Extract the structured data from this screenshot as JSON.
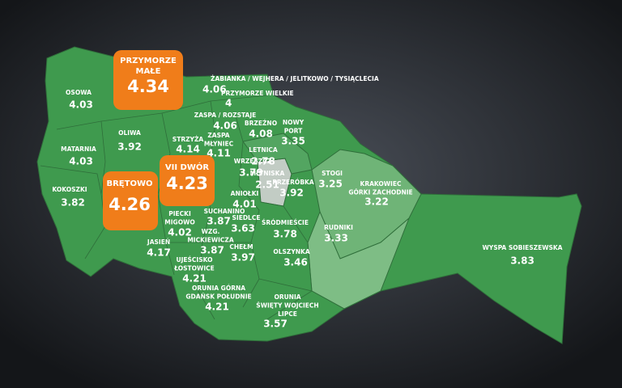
{
  "districts": [
    {
      "name": [
        "OSOWA"
      ],
      "value": 4.03
    },
    {
      "name": [
        "PRZYMORZE",
        "MAŁE"
      ],
      "value": 4.34,
      "highlight": true
    },
    {
      "name": [
        "ŻABIANKA / WEJHERA / JELITKOWO / TYSIĄCLECIA"
      ],
      "value": 4.06
    },
    {
      "name": [
        "PRZYMORZE WIELKIE"
      ],
      "value": 4
    },
    {
      "name": [
        "OLIWA"
      ],
      "value": 3.92
    },
    {
      "name": [
        "MATARNIA"
      ],
      "value": 4.03
    },
    {
      "name": [
        "ZASPA / ROZSTAJE"
      ],
      "value": 4.06
    },
    {
      "name": [
        "BRZEŹNO"
      ],
      "value": 4.08
    },
    {
      "name": [
        "NOWY",
        "PORT"
      ],
      "value": 3.35
    },
    {
      "name": [
        "STRZYŻA"
      ],
      "value": 4.14
    },
    {
      "name": [
        "ZASPA",
        "MŁYNIEC"
      ],
      "value": 4.11
    },
    {
      "name": [
        "LETNICA"
      ],
      "value": 2.78
    },
    {
      "name": [
        "VII DWÓR"
      ],
      "value": 4.23,
      "highlight": true
    },
    {
      "name": [
        "WRZESZCZ"
      ],
      "value": 3.79
    },
    {
      "name": [
        "KOKOSZKI"
      ],
      "value": 3.82
    },
    {
      "name": [
        "BRĘTOWO"
      ],
      "value": 4.26,
      "highlight": true
    },
    {
      "name": [
        "MŁYNISKA"
      ],
      "value": 2.51
    },
    {
      "name": [
        "PRZERÓBKA"
      ],
      "value": 3.92
    },
    {
      "name": [
        "STOGI"
      ],
      "value": 3.25
    },
    {
      "name": [
        "KRAKOWIEC",
        "GÓRKI ZACHODNIE"
      ],
      "value": 3.22
    },
    {
      "name": [
        "ANIOŁKI"
      ],
      "value": 4.01
    },
    {
      "name": [
        "SUCHANINO"
      ],
      "value": 3.87
    },
    {
      "name": [
        "SIEDLCE"
      ],
      "value": 3.63
    },
    {
      "name": [
        "PIECKI",
        "MIGOWO"
      ],
      "value": 4.02
    },
    {
      "name": [
        "ŚRÓDMIEŚCIE"
      ],
      "value": 3.78
    },
    {
      "name": [
        "RUDNIKI"
      ],
      "value": 3.33
    },
    {
      "name": [
        "WZG.",
        "MICKIEWICZA"
      ],
      "value": 3.87
    },
    {
      "name": [
        "CHEŁM"
      ],
      "value": 3.97
    },
    {
      "name": [
        "JASIEŃ"
      ],
      "value": 4.17
    },
    {
      "name": [
        "UJEŚCISKO",
        "ŁOSTOWICE"
      ],
      "value": 4.21
    },
    {
      "name": [
        "OLSZYNKA"
      ],
      "value": 3.46
    },
    {
      "name": [
        "ORUNIA GÓRNA",
        "GDAŃSK POŁUDNIE"
      ],
      "value": 4.21
    },
    {
      "name": [
        "ORUNIA",
        "ŚWIĘTY WOJCIECH",
        "LIPCE"
      ],
      "value": 3.57
    },
    {
      "name": [
        "WYSPA SOBIESZEWSKA"
      ],
      "value": 3.83
    }
  ]
}
